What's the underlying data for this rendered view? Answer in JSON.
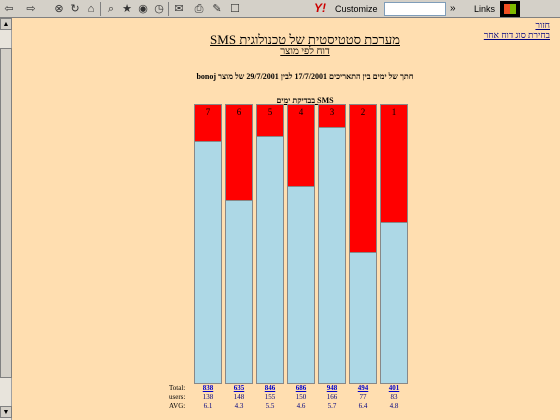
{
  "toolbar": {
    "customize_label": "Customize",
    "links_label": "Links",
    "more_label": "»",
    "search_value": ""
  },
  "page": {
    "back_link_line1": "חזור",
    "back_link_line2": "בחירת סוג דוח אחר",
    "title": "מערכת סטטיסטית של טכנולוגית SMS",
    "subtitle": "דוח לפי מוצר",
    "range_text": "חתך של ימים בין התאריכים 17/7/2001 לבין 29/7/2001 של מוצר bonoj",
    "chart_title": "SMS בבדיקת ימים"
  },
  "stats_labels": {
    "total": "Total:",
    "users": "users:",
    "avg": "AVG:"
  },
  "chart_data": {
    "type": "bar",
    "stacked": true,
    "direction": "right-to-left",
    "ylim": [
      0,
      1
    ],
    "categories": [
      "1",
      "2",
      "3",
      "4",
      "5",
      "6",
      "7"
    ],
    "series": [
      {
        "color": "#add8e6",
        "values": [
          0.58,
          0.47,
          0.92,
          0.71,
          0.89,
          0.66,
          0.87
        ]
      },
      {
        "color": "#ff0000",
        "values": [
          0.42,
          0.53,
          0.08,
          0.29,
          0.11,
          0.34,
          0.13
        ]
      }
    ],
    "total": [
      "401",
      "494",
      "948",
      "686",
      "846",
      "635",
      "838"
    ],
    "users": [
      "83",
      "77",
      "166",
      "150",
      "155",
      "148",
      "138"
    ],
    "avg": [
      "4.8",
      "6.4",
      "5.7",
      "4.6",
      "5.5",
      "4.3",
      "6.1"
    ]
  }
}
